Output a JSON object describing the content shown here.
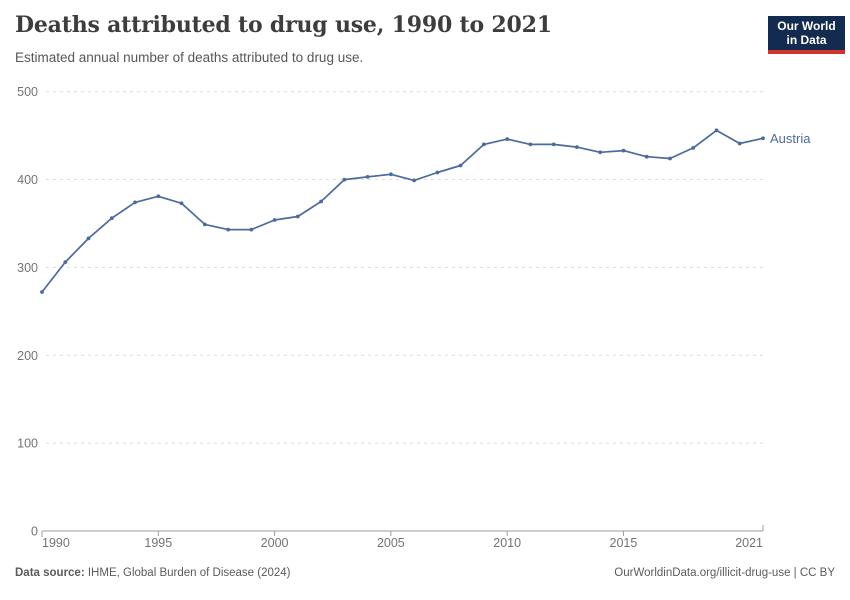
{
  "header": {
    "title": "Deaths attributed to drug use, 1990 to 2021",
    "subtitle": "Estimated annual number of deaths attributed to drug use."
  },
  "logo": {
    "line1": "Our World",
    "line2": "in Data"
  },
  "footer": {
    "source_label": "Data source:",
    "source_value": " IHME, Global Burden of Disease (2024)",
    "link": "OurWorldinData.org/illicit-drug-use | CC BY"
  },
  "colors": {
    "line": "#4C6A9C",
    "logo_navy": "#122B4F",
    "logo_red": "#D0342C",
    "gridline": "#dcdcdc",
    "axis": "#9e9e9e",
    "tick_text": "#737373",
    "title_text": "#3d3d3d"
  },
  "chart_data": {
    "type": "line",
    "title": "Deaths attributed to drug use, 1990 to 2021",
    "xlabel": "",
    "ylabel": "",
    "x": [
      1990,
      1991,
      1992,
      1993,
      1994,
      1995,
      1996,
      1997,
      1998,
      1999,
      2000,
      2001,
      2002,
      2003,
      2004,
      2005,
      2006,
      2007,
      2008,
      2009,
      2010,
      2011,
      2012,
      2013,
      2014,
      2015,
      2016,
      2017,
      2018,
      2019,
      2020,
      2021
    ],
    "series": [
      {
        "name": "Austria",
        "color": "#4C6A9C",
        "values": [
          272,
          306,
          333,
          356,
          374,
          381,
          373,
          349,
          343,
          343,
          354,
          358,
          375,
          400,
          403,
          406,
          399,
          408,
          416,
          440,
          446,
          440,
          440,
          437,
          431,
          433,
          426,
          424,
          436,
          456,
          441,
          447
        ]
      }
    ],
    "ylim": [
      0,
      500
    ],
    "yticks": [
      0,
      100,
      200,
      300,
      400,
      500
    ],
    "xticks": [
      1990,
      1995,
      2000,
      2005,
      2010,
      2015,
      2021
    ],
    "grid": "horizontal-dashed",
    "legend": "end-of-line-label"
  }
}
